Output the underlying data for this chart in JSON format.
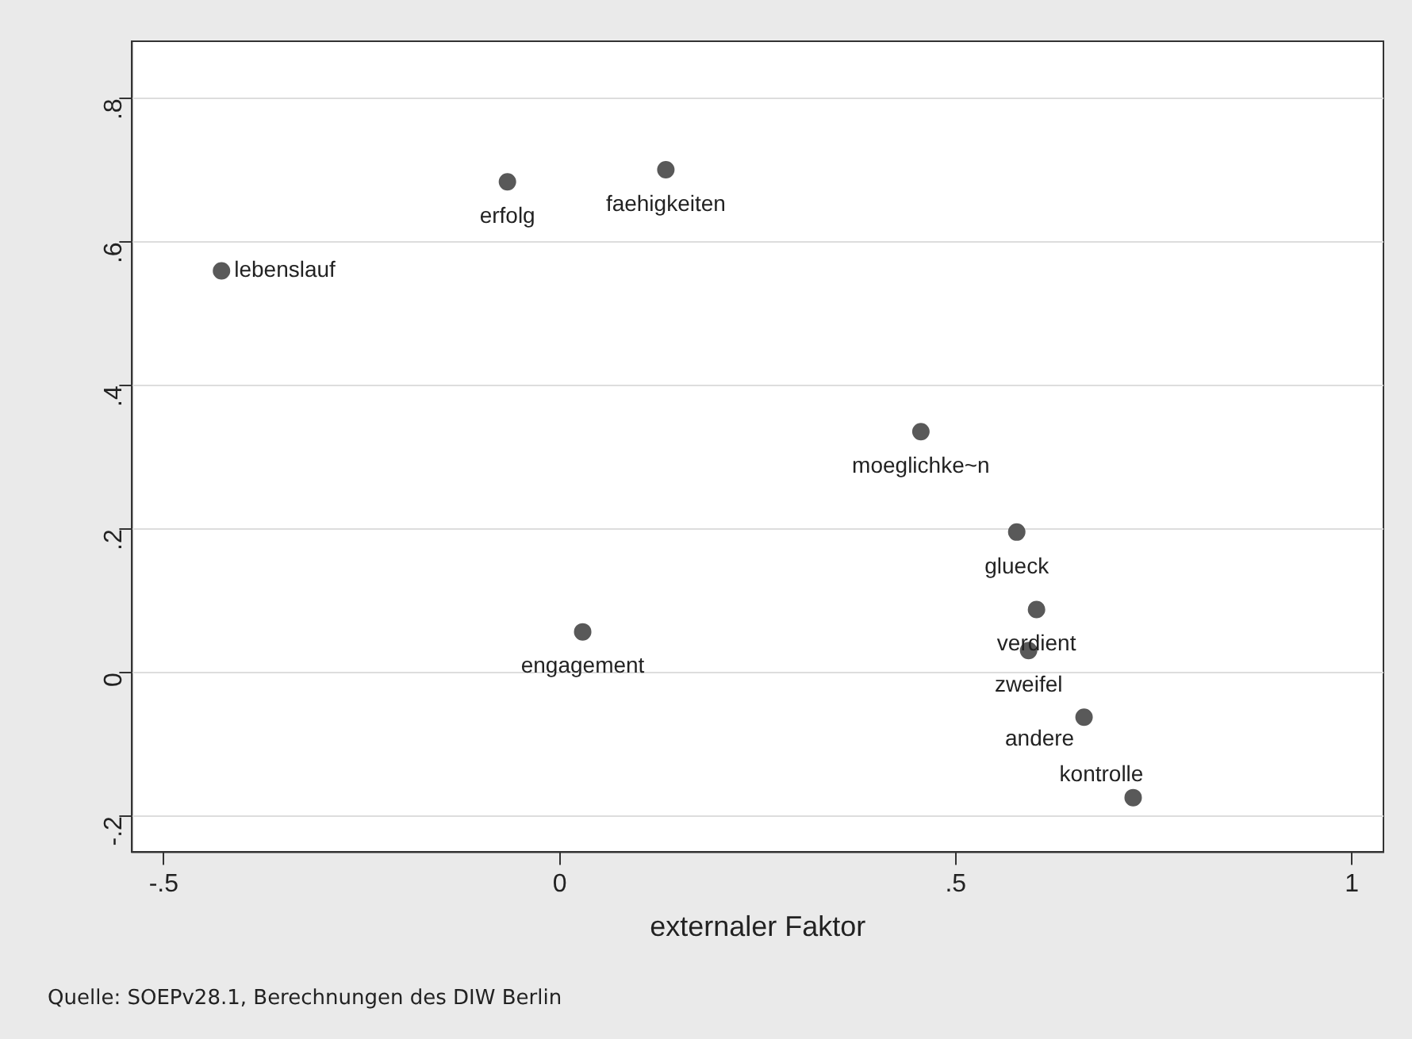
{
  "chart_data": {
    "type": "scatter",
    "xlabel": "externaler Faktor",
    "x": [
      -0.066,
      0.134,
      -0.427,
      0.456,
      0.577,
      0.602,
      0.592,
      0.662,
      0.724,
      0.029
    ],
    "values": [
      0.684,
      0.701,
      0.56,
      0.336,
      0.196,
      0.088,
      0.031,
      -0.062,
      -0.174,
      0.057
    ],
    "value_labels": [
      "erfolg",
      "faehigkeiten",
      "lebenslauf",
      "moeglichke~n",
      "glueck",
      "verdient",
      "zweifel",
      "andere",
      "kontrolle",
      "engagement"
    ],
    "color": "#595959",
    "marker": "circle",
    "grid": "y",
    "xlim": [
      -0.54,
      1.04
    ],
    "xticks": [
      {
        "value": -0.5,
        "label": "-.5"
      },
      0,
      {
        "value": 0.5,
        "label": ".5"
      },
      1
    ],
    "ylim": [
      -0.25,
      0.88
    ],
    "yticks": [
      {
        "value": -0.2,
        "label": "-.2"
      },
      0,
      {
        "value": 0.2,
        "label": ".2"
      },
      {
        "value": 0.4,
        "label": ".4"
      },
      {
        "value": 0.6,
        "label": ".6"
      },
      {
        "value": 0.8,
        "label": ".8"
      }
    ],
    "annotations": [
      "Quelle: SOEPv28.1, Berechnungen des DIW Berlin"
    ]
  }
}
